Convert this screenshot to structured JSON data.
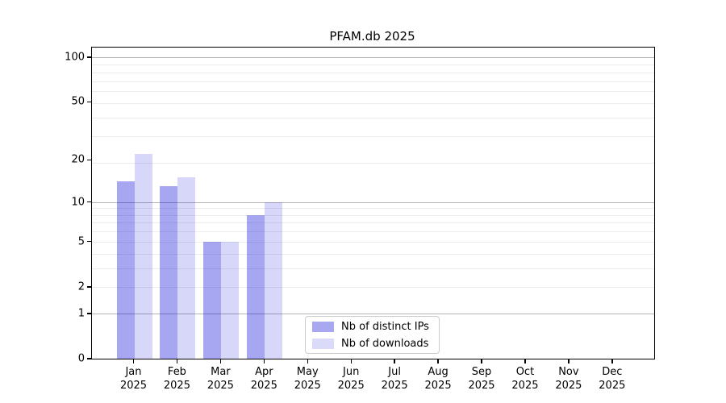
{
  "title": "PFAM.db 2025",
  "chart_data": {
    "type": "bar",
    "categories": [
      "Jan",
      "Feb",
      "Mar",
      "Apr",
      "May",
      "Jun",
      "Jul",
      "Aug",
      "Sep",
      "Oct",
      "Nov",
      "Dec"
    ],
    "xtick_year": "2025",
    "series": [
      {
        "name": "Nb of distinct IPs",
        "fill": "rgba(0,0,215,0.35)",
        "swatch": "#a8a8f1",
        "values": [
          14,
          13,
          5,
          8,
          0,
          0,
          0,
          0,
          0,
          0,
          0,
          0
        ]
      },
      {
        "name": "Nb of downloads",
        "fill": "rgba(0,0,215,0.155)",
        "swatch": "#dadaf9",
        "values": [
          22,
          15,
          5,
          10,
          0,
          0,
          0,
          0,
          0,
          0,
          0,
          0
        ]
      }
    ],
    "yscale": "log1p",
    "ylim": [
      0,
      116
    ],
    "yticks": [
      100,
      50,
      20,
      10,
      5,
      2,
      1,
      0
    ],
    "grid": {
      "major": [
        1,
        10,
        100
      ],
      "minor": [
        2,
        3,
        4,
        5,
        6,
        7,
        8,
        9,
        19,
        29,
        39,
        49,
        59,
        69,
        79,
        89
      ]
    },
    "legend_position": "lower-center-inside",
    "colors": {
      "gridline_major": "#b3b3b3",
      "gridline_minor": "#ececec",
      "spine": "#000000",
      "text": "#000000"
    }
  }
}
